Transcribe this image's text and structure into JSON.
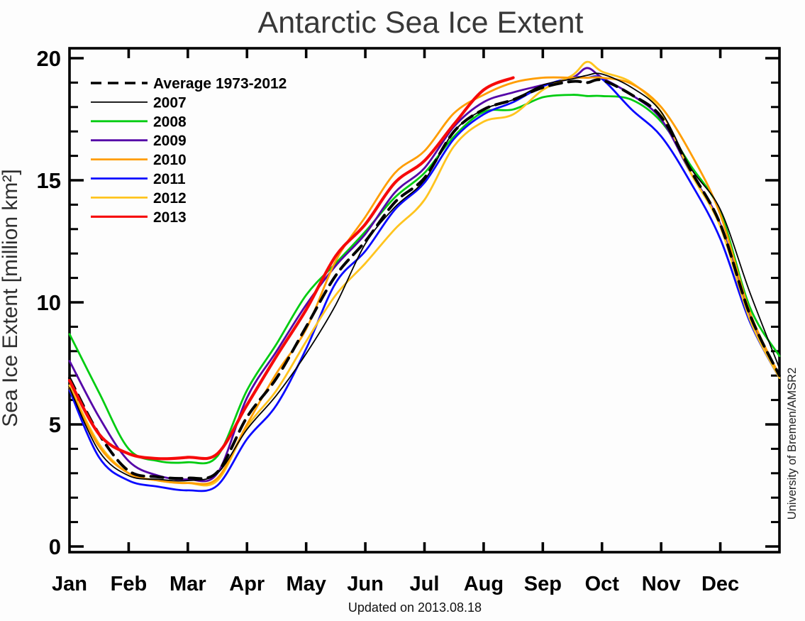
{
  "title": "Antarctic Sea Ice Extent",
  "footer": {
    "updated": "Updated on 2013.08.18"
  },
  "watermark": "University of Bremen/AMSR2",
  "axes": {
    "y_label": "Sea Ice Extent [million km²]",
    "y_ticks": [
      0,
      5,
      10,
      15,
      20
    ],
    "y_minor_step": 1,
    "x_tick_labels": [
      "Jan",
      "Feb",
      "Mar",
      "Apr",
      "May",
      "Jun",
      "Jul",
      "Aug",
      "Sep",
      "Oct",
      "Nov",
      "Dec"
    ]
  },
  "chart_data": {
    "type": "line",
    "title": "Antarctic Sea Ice Extent",
    "ylabel": "Sea Ice Extent [million km²]",
    "xlabel": "",
    "ylim": [
      0,
      20
    ],
    "xlim_months": [
      0,
      12
    ],
    "grid": false,
    "legend_position": "top-left-inside",
    "x_months": [
      0,
      0.5,
      1,
      1.5,
      2,
      2.5,
      3,
      3.5,
      4,
      4.5,
      5,
      5.5,
      6,
      6.5,
      7,
      7.5,
      8,
      8.5,
      8.75,
      9,
      9.5,
      10,
      10.5,
      11,
      11.5,
      12
    ],
    "series": [
      {
        "name": "Average 1973-2012",
        "color": "#000000",
        "dash": "17 10",
        "width": 4,
        "values": [
          6.9,
          4.6,
          3.1,
          2.85,
          2.8,
          3.05,
          5.3,
          6.9,
          9.0,
          11.1,
          12.5,
          14.1,
          15.1,
          17.0,
          17.9,
          18.3,
          18.8,
          19.05,
          19.0,
          19.1,
          18.5,
          17.6,
          15.4,
          13.2,
          9.5,
          7.0
        ]
      },
      {
        "name": "2007",
        "color": "#000000",
        "dash": null,
        "width": 1.8,
        "values": [
          6.5,
          3.9,
          2.9,
          2.75,
          2.7,
          3.0,
          4.8,
          6.2,
          7.9,
          9.9,
          12.4,
          13.9,
          15.0,
          17.0,
          17.9,
          18.3,
          18.9,
          19.15,
          19.3,
          19.35,
          18.8,
          17.8,
          15.5,
          13.8,
          10.4,
          7.3
        ]
      },
      {
        "name": "2008",
        "color": "#00cc11",
        "dash": null,
        "width": 2.8,
        "values": [
          8.7,
          6.3,
          4.0,
          3.5,
          3.45,
          3.7,
          6.4,
          8.3,
          10.3,
          11.6,
          12.9,
          14.3,
          15.3,
          16.8,
          17.8,
          17.9,
          18.4,
          18.5,
          18.45,
          18.45,
          18.3,
          17.4,
          15.6,
          13.7,
          9.8,
          7.8
        ]
      },
      {
        "name": "2009",
        "color": "#5505a8",
        "dash": null,
        "width": 2.8,
        "values": [
          7.6,
          5.3,
          3.5,
          2.9,
          2.75,
          3.0,
          6.1,
          8.0,
          9.9,
          11.5,
          12.8,
          14.5,
          15.5,
          17.2,
          18.2,
          18.6,
          18.9,
          19.2,
          19.6,
          19.2,
          18.5,
          17.5,
          15.3,
          13.2,
          9.4,
          7.0
        ]
      },
      {
        "name": "2010",
        "color": "#ff9d00",
        "dash": null,
        "width": 2.8,
        "values": [
          6.5,
          4.1,
          3.0,
          2.7,
          2.6,
          2.8,
          5.0,
          7.1,
          8.9,
          11.7,
          13.5,
          15.3,
          16.2,
          17.75,
          18.5,
          19.0,
          19.2,
          19.2,
          19.2,
          19.2,
          18.95,
          18.0,
          16.1,
          13.6,
          9.6,
          7.0
        ]
      },
      {
        "name": "2011",
        "color": "#0a0aff",
        "dash": null,
        "width": 2.8,
        "values": [
          6.4,
          3.65,
          2.7,
          2.45,
          2.3,
          2.5,
          4.4,
          5.8,
          8.1,
          10.8,
          12.1,
          13.8,
          14.9,
          16.7,
          17.7,
          18.2,
          18.85,
          19.2,
          19.2,
          19.15,
          17.9,
          16.8,
          14.9,
          12.6,
          9.2,
          6.9
        ]
      },
      {
        "name": "2012",
        "color": "#ffc41e",
        "dash": null,
        "width": 2.8,
        "values": [
          6.6,
          4.2,
          3.0,
          2.7,
          2.6,
          2.7,
          4.9,
          6.4,
          8.4,
          10.3,
          11.6,
          13.0,
          14.2,
          16.4,
          17.4,
          17.7,
          18.7,
          19.3,
          19.85,
          19.45,
          19.0,
          17.8,
          15.3,
          13.1,
          9.3,
          6.9
        ]
      },
      {
        "name": "2013",
        "color": "#f60a0a",
        "dash": null,
        "width": 4.2,
        "values": [
          6.8,
          4.6,
          3.8,
          3.6,
          3.65,
          3.8,
          5.8,
          7.8,
          9.7,
          11.9,
          13.2,
          14.9,
          15.8,
          17.3,
          18.7,
          19.2,
          null,
          null,
          null,
          null,
          null,
          null,
          null,
          null,
          null,
          null
        ]
      }
    ]
  }
}
